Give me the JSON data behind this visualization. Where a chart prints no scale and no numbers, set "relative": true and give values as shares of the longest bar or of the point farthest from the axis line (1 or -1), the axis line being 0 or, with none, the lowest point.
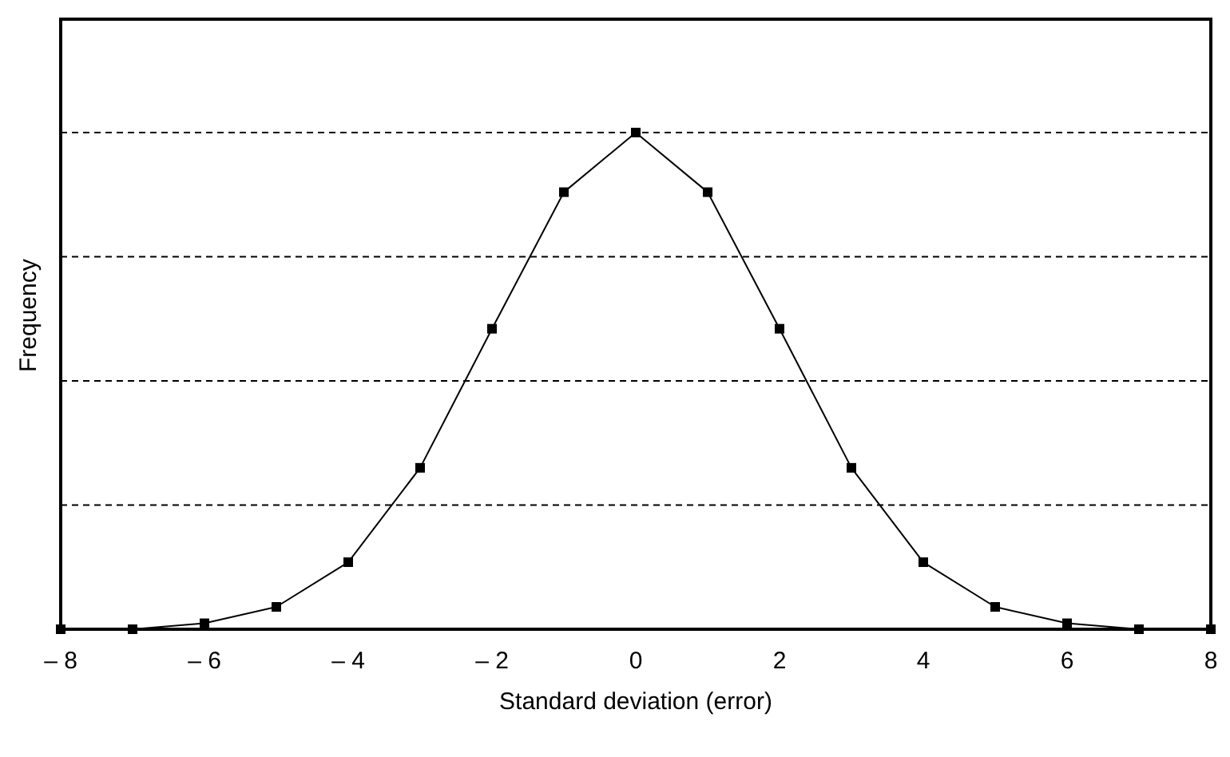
{
  "chart_data": {
    "type": "line",
    "relative": true,
    "xlabel": "Standard deviation (error)",
    "ylabel": "Frequency",
    "x": [
      -8,
      -7,
      -6,
      -5,
      -4,
      -3,
      -2,
      -1,
      0,
      1,
      2,
      3,
      4,
      5,
      6,
      7,
      8
    ],
    "series": [
      {
        "color": "#000000",
        "values": [
          0,
          0,
          0.012,
          0.045,
          0.135,
          0.325,
          0.605,
          0.88,
          1,
          0.88,
          0.605,
          0.325,
          0.135,
          0.045,
          0.012,
          0,
          0
        ]
      }
    ],
    "xlim": [
      -8,
      8
    ],
    "xticks": [
      {
        "value": -8,
        "label": "– 8"
      },
      {
        "value": -6,
        "label": "– 6"
      },
      {
        "value": -4,
        "label": "– 4"
      },
      {
        "value": -2,
        "label": "– 2"
      },
      0,
      2,
      4,
      6,
      8
    ],
    "grid": "y",
    "marker": "square",
    "line_style": "solid"
  }
}
